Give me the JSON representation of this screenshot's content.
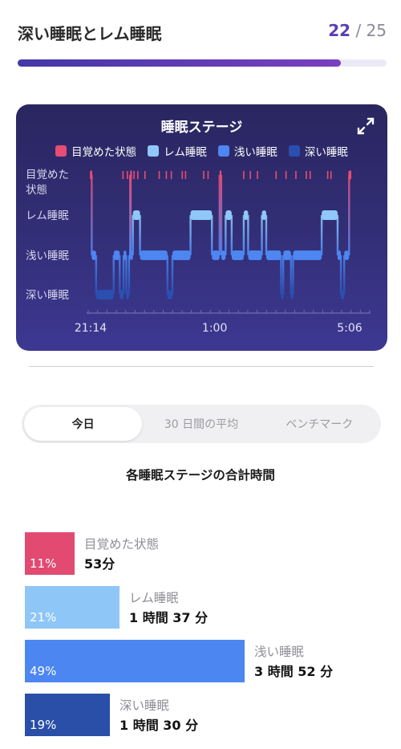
{
  "header": {
    "title": "深い睡眠とレム睡眠",
    "counter_current": "22",
    "counter_sep": " / ",
    "counter_total": "25",
    "progress": 0.875
  },
  "chart": {
    "title": "睡眠ステージ",
    "expand_icon": "expand-arrows-icon"
  },
  "chart_data": {
    "type": "line",
    "title": "睡眠ステージ",
    "legend": [
      {
        "name": "目覚めた状態",
        "color": "#e84c74"
      },
      {
        "name": "レム睡眠",
        "color": "#8fc8f8"
      },
      {
        "name": "浅い睡眠",
        "color": "#4d86f0"
      },
      {
        "name": "深い睡眠",
        "color": "#2a4fb0"
      }
    ],
    "y_categories": [
      "目覚めた\n状態",
      "レム睡眠",
      "浅い睡眠",
      "深い睡眠"
    ],
    "x_ticks": [
      "21:14",
      "1:00",
      "5:06"
    ],
    "x_range": [
      "21:14",
      "5:06"
    ],
    "stage_timeline": [
      {
        "start": "21:14",
        "stage": "awake"
      },
      {
        "start": "21:16",
        "stage": "light"
      },
      {
        "start": "21:24",
        "stage": "deep"
      },
      {
        "start": "21:56",
        "stage": "light"
      },
      {
        "start": "22:07",
        "stage": "deep"
      },
      {
        "start": "22:14",
        "stage": "light"
      },
      {
        "start": "22:19",
        "stage": "deep"
      },
      {
        "start": "22:24",
        "stage": "light"
      },
      {
        "start": "22:26",
        "stage": "awake"
      },
      {
        "start": "22:27",
        "stage": "light"
      },
      {
        "start": "22:31",
        "stage": "rem"
      },
      {
        "start": "22:44",
        "stage": "light"
      },
      {
        "start": "23:34",
        "stage": "deep"
      },
      {
        "start": "23:43",
        "stage": "light"
      },
      {
        "start": "0:16",
        "stage": "rem"
      },
      {
        "start": "0:55",
        "stage": "light"
      },
      {
        "start": "1:09",
        "stage": "awake"
      },
      {
        "start": "1:12",
        "stage": "light"
      },
      {
        "start": "1:20",
        "stage": "rem"
      },
      {
        "start": "1:31",
        "stage": "light"
      },
      {
        "start": "1:53",
        "stage": "rem"
      },
      {
        "start": "2:01",
        "stage": "light"
      },
      {
        "start": "2:26",
        "stage": "rem"
      },
      {
        "start": "2:34",
        "stage": "light"
      },
      {
        "start": "3:01",
        "stage": "deep"
      },
      {
        "start": "3:05",
        "stage": "light"
      },
      {
        "start": "3:19",
        "stage": "deep"
      },
      {
        "start": "3:23",
        "stage": "light"
      },
      {
        "start": "4:15",
        "stage": "rem"
      },
      {
        "start": "4:44",
        "stage": "light"
      },
      {
        "start": "4:50",
        "stage": "deep"
      },
      {
        "start": "4:56",
        "stage": "light"
      },
      {
        "start": "5:05",
        "stage": "awake"
      }
    ],
    "awake_ticks": [
      "21:14",
      "22:13",
      "22:21",
      "22:28",
      "22:33",
      "22:40",
      "22:53",
      "23:19",
      "23:32",
      "23:41",
      "0:01",
      "0:07",
      "0:40",
      "0:48",
      "1:11",
      "1:53",
      "2:05",
      "2:18",
      "2:52",
      "3:10",
      "3:28",
      "3:47",
      "3:54",
      "4:26",
      "4:32",
      "5:05"
    ]
  },
  "tabs": [
    {
      "label": "今日",
      "active": true
    },
    {
      "label": "30 日間の平均",
      "active": false
    },
    {
      "label": "ベンチマーク",
      "active": false
    }
  ],
  "summary": {
    "title": "各睡眠ステージの合計時間",
    "stages": [
      {
        "name": "目覚めた状態",
        "percent_label": "11%",
        "duration": "53分",
        "fraction": 0.11,
        "color": "#e24a72"
      },
      {
        "name": "レム睡眠",
        "percent_label": "21%",
        "duration": "1 時間 37 分",
        "fraction": 0.21,
        "color": "#8ec6f7"
      },
      {
        "name": "浅い睡眠",
        "percent_label": "49%",
        "duration": "3 時間 52 分",
        "fraction": 0.49,
        "color": "#4c86f0"
      },
      {
        "name": "深い睡眠",
        "percent_label": "19%",
        "duration": "1 時間 30 分",
        "fraction": 0.19,
        "color": "#2a4fa8"
      }
    ]
  }
}
